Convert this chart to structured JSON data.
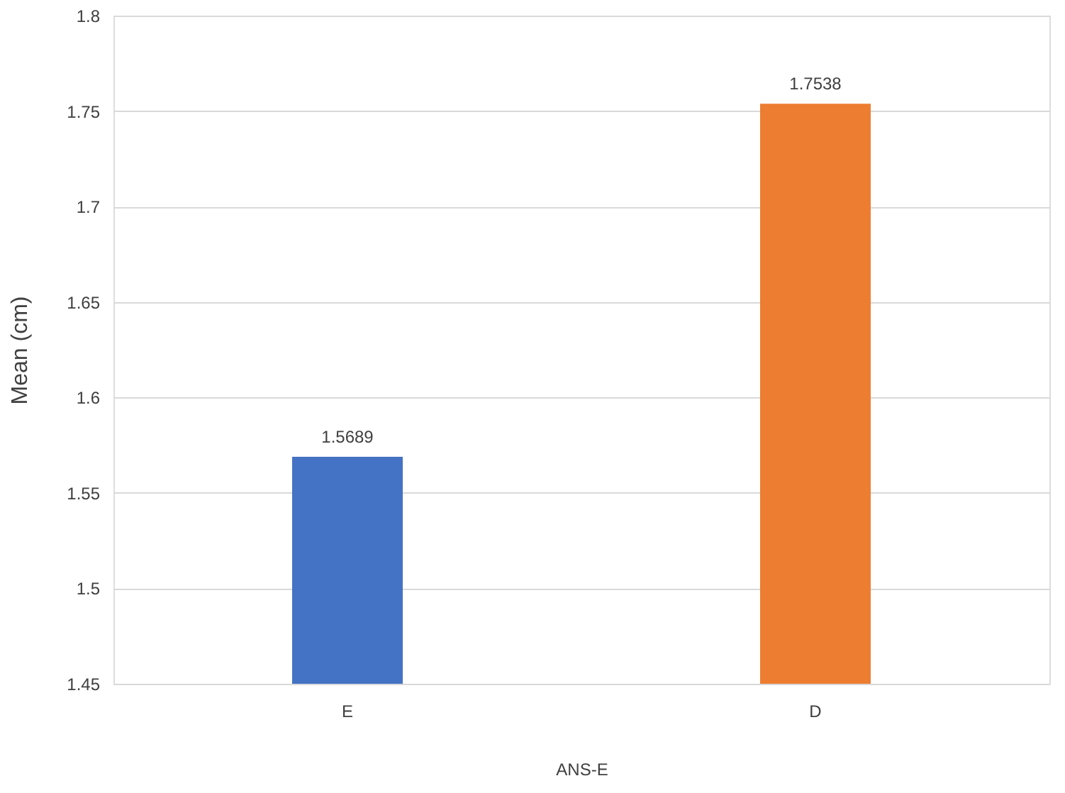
{
  "chart_data": {
    "type": "bar",
    "categories": [
      "E",
      "D"
    ],
    "values": [
      1.5689,
      1.7538
    ],
    "colors": [
      "#4472c4",
      "#ed7d31"
    ],
    "ylabel": "Mean (cm)",
    "xlabel": "ANS-E",
    "ylim": [
      1.45,
      1.8
    ],
    "yticks": [
      1.45,
      1.5,
      1.55,
      1.6,
      1.65,
      1.7,
      1.75,
      1.8
    ],
    "grid": "y",
    "data_labels": true
  }
}
